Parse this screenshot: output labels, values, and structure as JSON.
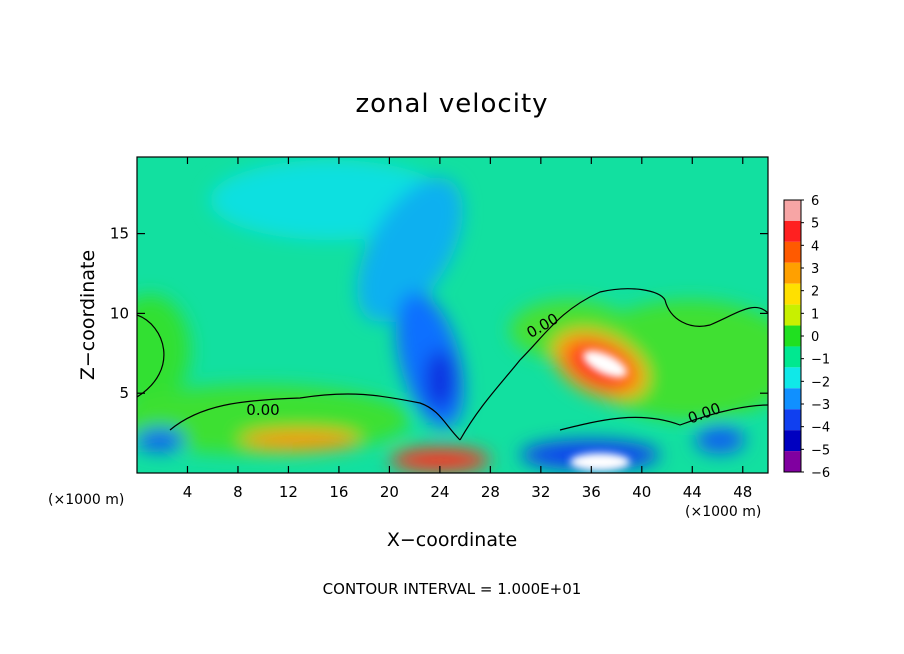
{
  "chart_data": {
    "type": "heatmap",
    "title": "zonal velocity",
    "xlabel": "X−coordinate",
    "ylabel": "Z−coordinate",
    "x_unit_label": "(×1000 m)",
    "xlim": [
      0,
      50
    ],
    "ylim": [
      0,
      19.8
    ],
    "x_ticks": [
      "4",
      "8",
      "12",
      "16",
      "20",
      "24",
      "28",
      "32",
      "36",
      "40",
      "44",
      "48"
    ],
    "x_tick_values": [
      4,
      8,
      12,
      16,
      20,
      24,
      28,
      32,
      36,
      40,
      44,
      48
    ],
    "y_ticks": [
      "5",
      "10",
      "15"
    ],
    "y_tick_values": [
      5,
      10,
      15
    ],
    "footer": "CONTOUR INTERVAL = 1.000E+01",
    "contour_labels": [
      "0.00",
      "0.00",
      "0.00"
    ],
    "colorbar": {
      "ticks": [
        "6",
        "5",
        "4",
        "3",
        "2",
        "1",
        "0",
        "−1",
        "−2",
        "−3",
        "−4",
        "−5",
        "−6"
      ],
      "range": [
        -6,
        6
      ],
      "colors": [
        "#f7a5a5",
        "#ff2020",
        "#ff5a00",
        "#ffa000",
        "#ffe000",
        "#c8f000",
        "#20e020",
        "#00e890",
        "#10e8e8",
        "#1090ff",
        "#1040f0",
        "#0000c0",
        "#8000a0"
      ]
    },
    "features": [
      {
        "x": 37,
        "z": 7.1,
        "value": 6,
        "desc": "positive max"
      },
      {
        "x": 23,
        "z": 6.0,
        "value": -4.5,
        "desc": "negative core"
      },
      {
        "x": 24,
        "z": 15.0,
        "value": -3,
        "desc": "upper negative band"
      },
      {
        "x": 35,
        "z": 0.6,
        "value": -6,
        "desc": "surface negative"
      },
      {
        "x": 24,
        "z": 0.5,
        "value": 6,
        "desc": "surface positive"
      }
    ]
  }
}
